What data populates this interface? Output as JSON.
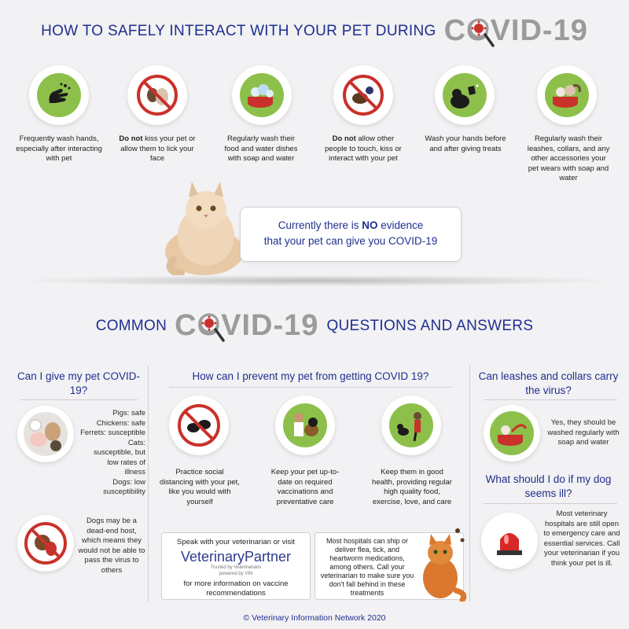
{
  "header": {
    "title": "HOW TO SAFELY INTERACT WITH YOUR PET DURING",
    "covid_word": "COVID-19"
  },
  "tips": [
    {
      "icon": "hand-washing-icon",
      "bold": "",
      "text": "Frequently wash hands, especially after interacting with pet"
    },
    {
      "icon": "no-kissing-pet-icon",
      "bold": "Do not",
      "text": " kiss your pet or allow them to lick your face"
    },
    {
      "icon": "washing-dishes-icon",
      "bold": "",
      "text": "Regularly wash their food and water dishes with soap and water"
    },
    {
      "icon": "no-touching-pet-icon",
      "bold": "Do not",
      "text": " allow other people to touch, kiss or interact with your pet"
    },
    {
      "icon": "wash-after-treats-icon",
      "bold": "",
      "text": "Wash your hands before and after giving treats"
    },
    {
      "icon": "washing-accessories-icon",
      "bold": "",
      "text": "Regularly wash their leashes, collars, and any other accessories your pet wears with soap and water"
    }
  ],
  "callout": {
    "line1_pre": "Currently there is ",
    "line1_bold": "NO",
    "line1_post": " evidence",
    "line2": "that your pet can give you COVID-19"
  },
  "qa_header": {
    "left": "COMMON",
    "covid_word": "COVID-19",
    "right": "QUESTIONS AND ANSWERS"
  },
  "col_left": {
    "question": "Can I give my pet COVID-19?",
    "animals_text": [
      "Pigs: safe",
      "Chickens: safe",
      "Ferrets: susceptible",
      "Cats: susceptible, but low rates of illness",
      "Dogs: low susceptibility"
    ],
    "dogs_text": "Dogs may be a dead-end host, which means they would not be able to pass the virus to others"
  },
  "col_mid": {
    "question": "How can I prevent my pet from getting COVID 19?",
    "items": [
      {
        "icon": "social-distancing-icon",
        "text": "Practice social distancing with your pet, like you would with yourself"
      },
      {
        "icon": "vet-visit-icon",
        "text": "Keep your pet up-to-date on required vaccinations and preventative care"
      },
      {
        "icon": "exercise-icon",
        "text": "Keep them in good health, providing regular high quality food, exercise, love, and care"
      }
    ],
    "box_left_top": "Speak with your veterinarian or visit",
    "logo_main": "Veterinary",
    "logo_partner": "Partner",
    "logo_sub1": "Trusted by Veterinarians",
    "logo_sub2": "powered by VIN",
    "box_left_bottom": "for more information on vaccine recommendations",
    "box_right": "Most hospitals can ship or deliver flea, tick, and heartworm medications, among others. Call your veterinarian to make sure you don't fall behind in these treatments"
  },
  "col_right": {
    "question1": "Can leashes and collars carry the virus?",
    "answer1": "Yes, they should be washed regularly with soap and water",
    "question2": "What should I do if my dog seems ill?",
    "answer2": "Most veterinary hospitals are still open to emergency care and essential services. Call your veterinarian if you think your pet is ill."
  },
  "footer": "© Veterinary Information Network 2020",
  "colors": {
    "navy": "#1f2f8f",
    "prohibit_red": "#c9312b",
    "icon_green": "#8cc04b"
  }
}
